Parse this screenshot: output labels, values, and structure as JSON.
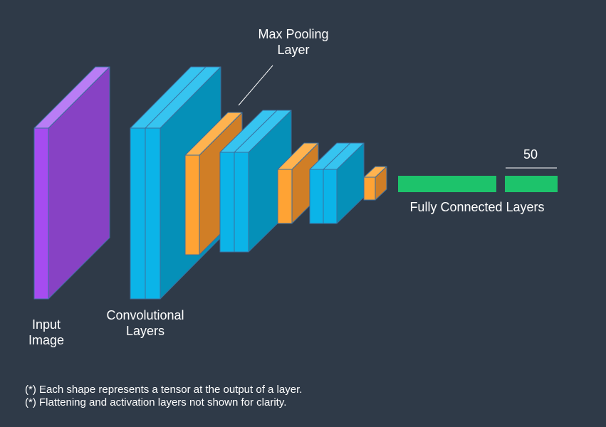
{
  "colors": {
    "background": "#2f3a48",
    "input": {
      "front": "#a64cf0",
      "side": "#8742c4",
      "top": "#b97df5"
    },
    "conv": {
      "front": "#0bb4e8",
      "side": "#0590b8",
      "top": "#36c4f0"
    },
    "pool": {
      "front": "#ffa334",
      "side": "#d07e26",
      "top": "#ffb34f"
    },
    "fc": "#1dc36b",
    "stroke": "#3b6f9e",
    "text": "#ffffff",
    "line": "#ffffff"
  },
  "labels": {
    "input_line1": "Input",
    "input_line2": "Image",
    "conv_line1": "Convolutional",
    "conv_line2": "Layers",
    "pool_line1": "Max Pooling",
    "pool_line2": "Layer",
    "fc": "Fully Connected Layers",
    "fc_size": "50"
  },
  "notes": [
    "(*) Each shape represents a tensor at the output of a layer.",
    "(*) Flattening and activation layers not shown for clarity."
  ]
}
